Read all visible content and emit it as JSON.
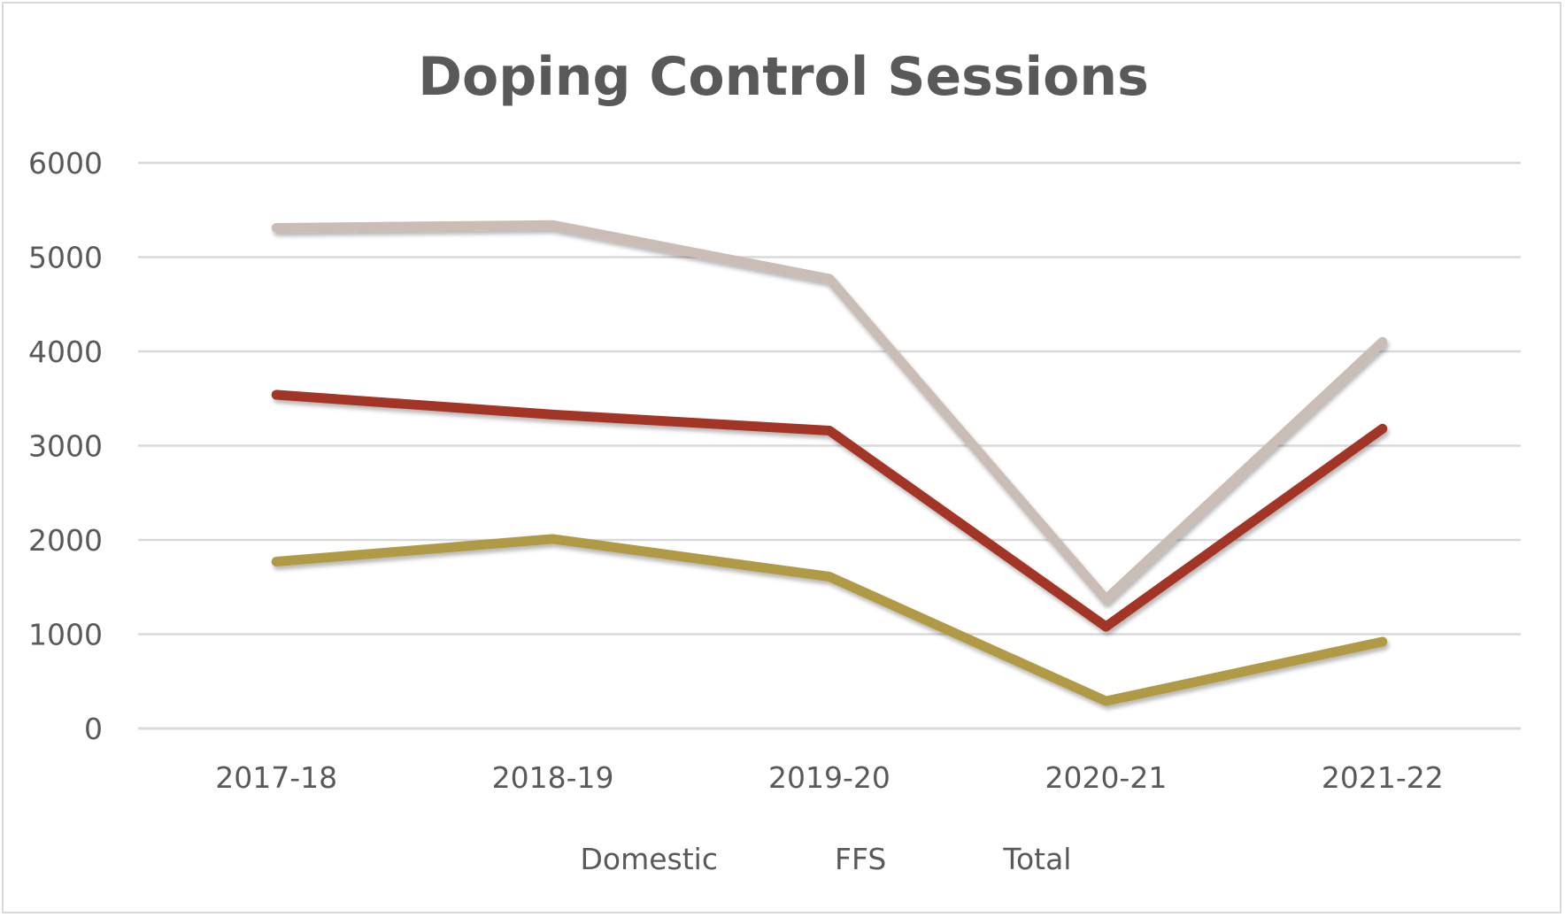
{
  "chart_data": {
    "type": "line",
    "title": "Doping Control Sessions",
    "xlabel": "",
    "ylabel": "",
    "categories": [
      "2017-18",
      "2018-19",
      "2019-20",
      "2020-21",
      "2021-22"
    ],
    "ylim": [
      0,
      6000
    ],
    "yticks": [
      "0",
      "1000",
      "2000",
      "3000",
      "4000",
      "5000",
      "6000"
    ],
    "grid": true,
    "legend_position": "bottom",
    "series": [
      {
        "name": "Domestic",
        "color": "#a33428",
        "values": [
          3540,
          3330,
          3160,
          1080,
          3180
        ]
      },
      {
        "name": "FFS",
        "color": "#b09a45",
        "values": [
          1770,
          2010,
          1610,
          290,
          920
        ]
      },
      {
        "name": "Total",
        "color": "#c9bdb5",
        "values": [
          5310,
          5340,
          4770,
          1370,
          4100
        ]
      }
    ]
  }
}
